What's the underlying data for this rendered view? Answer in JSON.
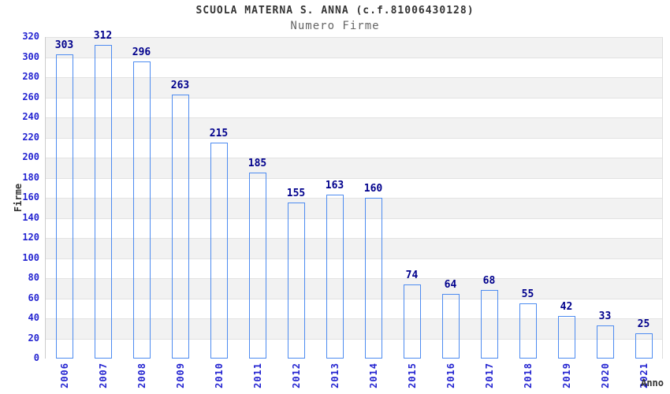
{
  "chart": {
    "title": "SCUOLA MATERNA S. ANNA (c.f.81006430128)",
    "subtitle": "Numero Firme",
    "ylabel": "Firme",
    "xlabel": "Anno"
  },
  "chart_data": {
    "type": "bar",
    "title": "SCUOLA MATERNA S. ANNA (c.f.81006430128)",
    "subtitle": "Numero Firme",
    "xlabel": "Anno",
    "ylabel": "Firme",
    "categories": [
      "2006",
      "2007",
      "2008",
      "2009",
      "2010",
      "2011",
      "2012",
      "2013",
      "2014",
      "2015",
      "2016",
      "2017",
      "2018",
      "2019",
      "2020",
      "2021"
    ],
    "values": [
      303,
      312,
      296,
      263,
      215,
      185,
      155,
      163,
      160,
      74,
      64,
      68,
      55,
      42,
      33,
      25
    ],
    "ylim": [
      0,
      320
    ],
    "ytick_step": 20,
    "grid": true,
    "band_alternating": true,
    "legend": "none"
  },
  "colors": {
    "tick_label": "#2424d1",
    "value_label": "#00008c",
    "title": "#333333",
    "subtitle": "#666666",
    "axis_title": "#333333",
    "band_gray": "#f2f2f2",
    "band_white": "#ffffff",
    "gridline": "#e2e2e2",
    "plot_border": "#cccccc",
    "bar_border": "#4d8bf0",
    "bar_dark": "#161d68",
    "bar_highlight": "#dde1f2"
  }
}
